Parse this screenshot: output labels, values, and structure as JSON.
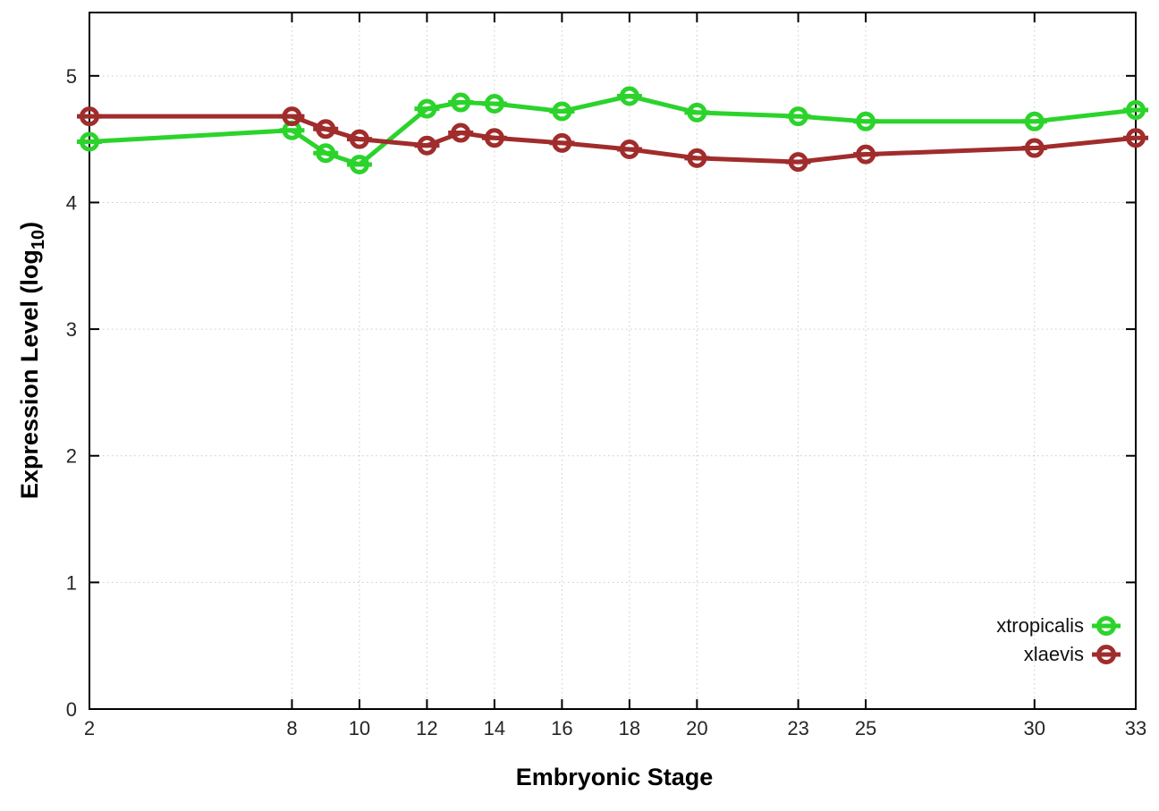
{
  "chart_data": {
    "type": "line",
    "title": "",
    "xlabel": "Embryonic Stage",
    "ylabel": "Expression Level (log10)",
    "ylabel_parts": {
      "prefix": "Expression Level (log",
      "sub": "10",
      "suffix": ")"
    },
    "xlim": [
      2,
      33
    ],
    "ylim": [
      0,
      5.5
    ],
    "xticks": [
      2,
      8,
      10,
      12,
      14,
      16,
      18,
      20,
      23,
      25,
      30,
      33
    ],
    "yticks": [
      0,
      1,
      2,
      3,
      4,
      5
    ],
    "grid": "dotted",
    "legend_position": "inside-right",
    "marker_style": "open-circle-with-error-bar",
    "x": [
      2,
      8,
      9,
      10,
      12,
      13,
      14,
      16,
      18,
      20,
      23,
      25,
      30,
      33
    ],
    "series": [
      {
        "name": "xtropicalis",
        "color": "#2bd32b",
        "values": [
          4.48,
          4.57,
          4.39,
          4.3,
          4.74,
          4.79,
          4.78,
          4.72,
          4.84,
          4.71,
          4.68,
          4.64,
          4.64,
          4.73
        ]
      },
      {
        "name": "xlaevis",
        "color": "#a02c2c",
        "values": [
          4.68,
          4.68,
          4.58,
          4.5,
          4.45,
          4.55,
          4.51,
          4.47,
          4.42,
          4.35,
          4.32,
          4.38,
          4.43,
          4.51
        ]
      }
    ],
    "frame_color": "#000000",
    "grid_color": "#c9c9c9"
  }
}
